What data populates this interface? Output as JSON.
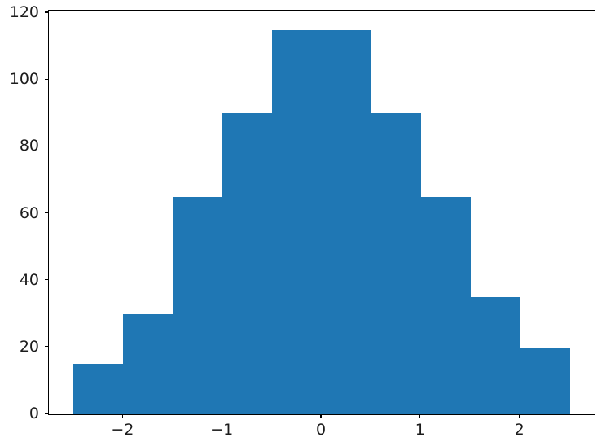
{
  "chart_data": {
    "type": "bar",
    "subtype": "histogram",
    "title": "",
    "xlabel": "",
    "ylabel": "",
    "bin_edges": [
      -2.5,
      -2.0,
      -1.5,
      -1.0,
      -0.5,
      0.0,
      0.5,
      1.0,
      1.5,
      2.0,
      2.5
    ],
    "counts": [
      15,
      30,
      65,
      90,
      115,
      115,
      90,
      65,
      35,
      20
    ],
    "xlim": [
      -2.75,
      2.75
    ],
    "ylim": [
      0,
      120.75
    ],
    "x_ticks": [
      -2,
      -1,
      0,
      1,
      2
    ],
    "x_tick_labels": [
      "−2",
      "−1",
      "0",
      "1",
      "2"
    ],
    "y_ticks": [
      0,
      20,
      40,
      60,
      80,
      100,
      120
    ],
    "y_tick_labels": [
      "0",
      "20",
      "40",
      "60",
      "80",
      "100",
      "120"
    ],
    "bar_color": "#1f77b4",
    "spine_color": "#000000",
    "tick_label_color": "#1c1c1c",
    "background_color": "#ffffff",
    "grid": false,
    "legend": null
  }
}
